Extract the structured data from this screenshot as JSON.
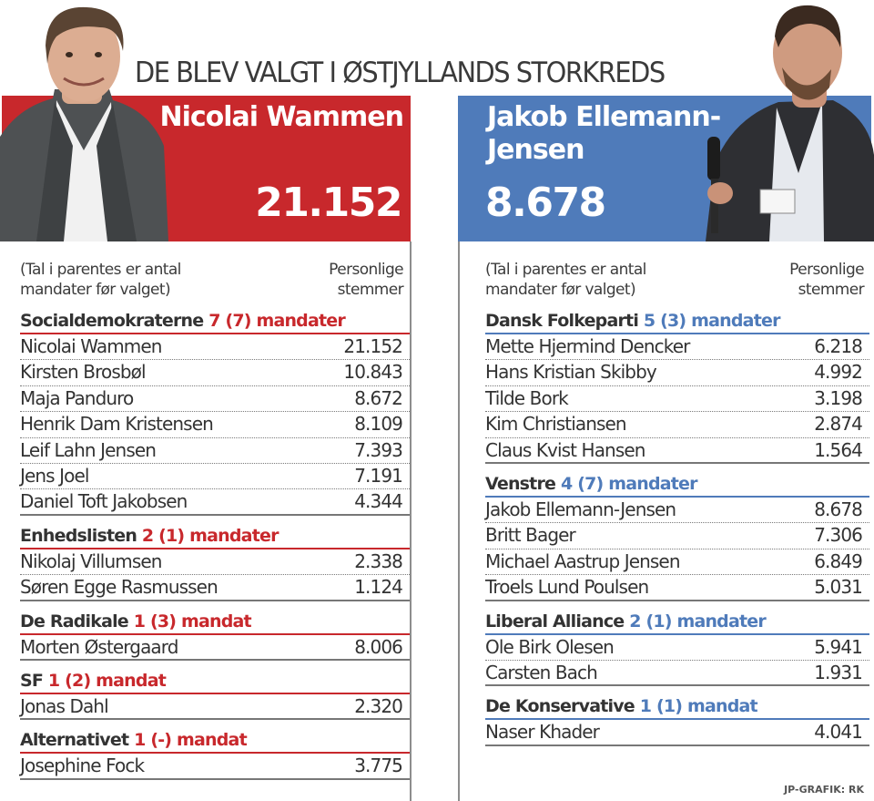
{
  "headline": "DE BLEV VALGT I ØSTJYLLANDS STORKREDS",
  "colors": {
    "red_bloc": "#c8282c",
    "blue_bloc": "#4f7bba"
  },
  "left": {
    "candidate_name": "Nicolai  Wammen",
    "candidate_votes": "21.152",
    "photo": "portrait-photo",
    "note": [
      "(Tal i parentes er antal",
      "mandater før valget)"
    ],
    "column_label": [
      "Personlige",
      "stemmer"
    ],
    "parties": [
      {
        "name": "Socialdemokraterne",
        "seats": "7 (7) mandater",
        "members": [
          {
            "name": "Nicolai Wammen",
            "votes": "21.152"
          },
          {
            "name": "Kirsten Brosbøl",
            "votes": "10.843"
          },
          {
            "name": "Maja Panduro",
            "votes": "8.672"
          },
          {
            "name": "Henrik Dam Kristensen",
            "votes": "8.109"
          },
          {
            "name": "Leif Lahn Jensen",
            "votes": "7.393"
          },
          {
            "name": "Jens Joel",
            "votes": "7.191"
          },
          {
            "name": "Daniel Toft Jakobsen",
            "votes": "4.344"
          }
        ]
      },
      {
        "name": "Enhedslisten",
        "seats": "2 (1) mandater",
        "members": [
          {
            "name": "Nikolaj Villumsen",
            "votes": "2.338"
          },
          {
            "name": "Søren Egge Rasmussen",
            "votes": "1.124"
          }
        ]
      },
      {
        "name": "De Radikale",
        "seats": "1 (3) mandat",
        "members": [
          {
            "name": "Morten Østergaard",
            "votes": "8.006"
          }
        ]
      },
      {
        "name": "SF",
        "seats": "1 (2) mandat",
        "members": [
          {
            "name": "Jonas Dahl",
            "votes": "2.320"
          }
        ]
      },
      {
        "name": "Alternativet",
        "seats": "1 (-) mandat",
        "members": [
          {
            "name": "Josephine Fock",
            "votes": "3.775"
          }
        ]
      }
    ]
  },
  "right": {
    "candidate_name": [
      "Jakob Ellemann-",
      "Jensen"
    ],
    "candidate_votes": "8.678",
    "photo": "portrait-photo-with-microphone",
    "note": [
      "(Tal i parentes er antal",
      "mandater før valget)"
    ],
    "column_label": [
      "Personlige",
      "stemmer"
    ],
    "parties": [
      {
        "name": "Dansk Folkeparti",
        "seats": "5 (3) mandater",
        "members": [
          {
            "name": "Mette Hjermind Dencker",
            "votes": "6.218"
          },
          {
            "name": "Hans Kristian Skibby",
            "votes": "4.992"
          },
          {
            "name": "Tilde Bork",
            "votes": "3.198"
          },
          {
            "name": "Kim Christiansen",
            "votes": "2.874"
          },
          {
            "name": "Claus Kvist Hansen",
            "votes": "1.564"
          }
        ]
      },
      {
        "name": "Venstre",
        "seats": "4 (7) mandater",
        "members": [
          {
            "name": "Jakob Ellemann-Jensen",
            "votes": "8.678"
          },
          {
            "name": "Britt Bager",
            "votes": "7.306"
          },
          {
            "name": "Michael Aastrup Jensen",
            "votes": "6.849"
          },
          {
            "name": "Troels Lund Poulsen",
            "votes": "5.031"
          }
        ]
      },
      {
        "name": "Liberal Alliance",
        "seats": "2 (1) mandater",
        "members": [
          {
            "name": "Ole Birk Olesen",
            "votes": "5.941"
          },
          {
            "name": "Carsten Bach",
            "votes": "1.931"
          }
        ]
      },
      {
        "name": "De Konservative",
        "seats": "1 (1) mandat",
        "members": [
          {
            "name": "Naser Khader",
            "votes": "4.041"
          }
        ]
      }
    ],
    "credit": "JP-GRAFIK: RK"
  }
}
